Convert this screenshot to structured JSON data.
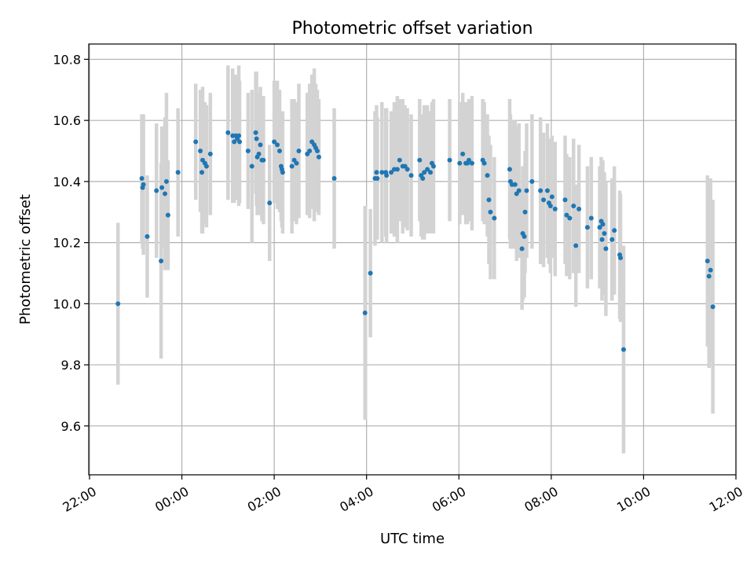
{
  "colors": {
    "point": "#1f77b4",
    "errorbar": "#d3d3d3",
    "grid": "#b0b0b0",
    "axis": "#000000"
  },
  "chart_data": {
    "type": "scatter",
    "title": "Photometric offset variation",
    "xlabel": "UTC time",
    "ylabel": "Photometric offset",
    "grid": true,
    "legend": "none",
    "xlim": [
      -121,
      720
    ],
    "ylim": [
      9.44,
      10.85
    ],
    "xticks": [
      {
        "value": -120,
        "label": "22:00"
      },
      {
        "value": 0,
        "label": "00:00"
      },
      {
        "value": 120,
        "label": "02:00"
      },
      {
        "value": 240,
        "label": "04:00"
      },
      {
        "value": 360,
        "label": "06:00"
      },
      {
        "value": 480,
        "label": "08:00"
      },
      {
        "value": 600,
        "label": "10:00"
      },
      {
        "value": 720,
        "label": "12:00"
      }
    ],
    "yticks": [
      {
        "value": 9.6,
        "label": "9.6"
      },
      {
        "value": 9.8,
        "label": "9.8"
      },
      {
        "value": 10.0,
        "label": "10.0"
      },
      {
        "value": 10.2,
        "label": "10.2"
      },
      {
        "value": 10.4,
        "label": "10.4"
      },
      {
        "value": 10.6,
        "label": "10.6"
      },
      {
        "value": 10.8,
        "label": "10.8"
      }
    ],
    "points": [
      {
        "x": -83,
        "y": 10.0,
        "err": 0.265
      },
      {
        "x": -52,
        "y": 10.41,
        "err": 0.21
      },
      {
        "x": -51,
        "y": 10.38,
        "err": 0.2
      },
      {
        "x": -50,
        "y": 10.39,
        "err": 0.23
      },
      {
        "x": -45,
        "y": 10.22,
        "err": 0.2
      },
      {
        "x": -33,
        "y": 10.37,
        "err": 0.22
      },
      {
        "x": -27,
        "y": 10.14,
        "err": 0.32
      },
      {
        "x": -26,
        "y": 10.38,
        "err": 0.2
      },
      {
        "x": -22,
        "y": 10.36,
        "err": 0.25
      },
      {
        "x": -20,
        "y": 10.4,
        "err": 0.29
      },
      {
        "x": -18,
        "y": 10.29,
        "err": 0.18
      },
      {
        "x": -5,
        "y": 10.43,
        "err": 0.21
      },
      {
        "x": 18,
        "y": 10.53,
        "err": 0.19
      },
      {
        "x": 24,
        "y": 10.5,
        "err": 0.2
      },
      {
        "x": 26,
        "y": 10.43,
        "err": 0.2
      },
      {
        "x": 27,
        "y": 10.47,
        "err": 0.24
      },
      {
        "x": 30,
        "y": 10.46,
        "err": 0.2
      },
      {
        "x": 32,
        "y": 10.45,
        "err": 0.2
      },
      {
        "x": 37,
        "y": 10.49,
        "err": 0.2
      },
      {
        "x": 60,
        "y": 10.56,
        "err": 0.22
      },
      {
        "x": 66,
        "y": 10.55,
        "err": 0.22
      },
      {
        "x": 68,
        "y": 10.53,
        "err": 0.2
      },
      {
        "x": 70,
        "y": 10.55,
        "err": 0.2
      },
      {
        "x": 72,
        "y": 10.54,
        "err": 0.2
      },
      {
        "x": 74,
        "y": 10.55,
        "err": 0.23
      },
      {
        "x": 75,
        "y": 10.53,
        "err": 0.2
      },
      {
        "x": 86,
        "y": 10.5,
        "err": 0.19
      },
      {
        "x": 91,
        "y": 10.45,
        "err": 0.25
      },
      {
        "x": 96,
        "y": 10.56,
        "err": 0.2
      },
      {
        "x": 97,
        "y": 10.54,
        "err": 0.22
      },
      {
        "x": 98,
        "y": 10.48,
        "err": 0.19
      },
      {
        "x": 100,
        "y": 10.49,
        "err": 0.2
      },
      {
        "x": 102,
        "y": 10.52,
        "err": 0.19
      },
      {
        "x": 104,
        "y": 10.47,
        "err": 0.2
      },
      {
        "x": 106,
        "y": 10.47,
        "err": 0.21
      },
      {
        "x": 114,
        "y": 10.33,
        "err": 0.19
      },
      {
        "x": 120,
        "y": 10.53,
        "err": 0.2
      },
      {
        "x": 124,
        "y": 10.52,
        "err": 0.21
      },
      {
        "x": 127,
        "y": 10.5,
        "err": 0.2
      },
      {
        "x": 129,
        "y": 10.45,
        "err": 0.18
      },
      {
        "x": 130,
        "y": 10.44,
        "err": 0.19
      },
      {
        "x": 131,
        "y": 10.43,
        "err": 0.2
      },
      {
        "x": 143,
        "y": 10.45,
        "err": 0.22
      },
      {
        "x": 146,
        "y": 10.47,
        "err": 0.2
      },
      {
        "x": 149,
        "y": 10.46,
        "err": 0.2
      },
      {
        "x": 152,
        "y": 10.5,
        "err": 0.22
      },
      {
        "x": 163,
        "y": 10.49,
        "err": 0.2
      },
      {
        "x": 166,
        "y": 10.5,
        "err": 0.22
      },
      {
        "x": 169,
        "y": 10.53,
        "err": 0.22
      },
      {
        "x": 172,
        "y": 10.52,
        "err": 0.25
      },
      {
        "x": 174,
        "y": 10.51,
        "err": 0.21
      },
      {
        "x": 176,
        "y": 10.5,
        "err": 0.2
      },
      {
        "x": 178,
        "y": 10.48,
        "err": 0.19
      },
      {
        "x": 198,
        "y": 10.41,
        "err": 0.23
      },
      {
        "x": 238,
        "y": 9.97,
        "err": 0.35
      },
      {
        "x": 245,
        "y": 10.1,
        "err": 0.21
      },
      {
        "x": 251,
        "y": 10.41,
        "err": 0.22
      },
      {
        "x": 253,
        "y": 10.43,
        "err": 0.22
      },
      {
        "x": 254,
        "y": 10.41,
        "err": 0.2
      },
      {
        "x": 260,
        "y": 10.43,
        "err": 0.23
      },
      {
        "x": 265,
        "y": 10.43,
        "err": 0.21
      },
      {
        "x": 266,
        "y": 10.42,
        "err": 0.22
      },
      {
        "x": 272,
        "y": 10.43,
        "err": 0.2
      },
      {
        "x": 276,
        "y": 10.44,
        "err": 0.22
      },
      {
        "x": 280,
        "y": 10.44,
        "err": 0.24
      },
      {
        "x": 283,
        "y": 10.47,
        "err": 0.2
      },
      {
        "x": 287,
        "y": 10.45,
        "err": 0.22
      },
      {
        "x": 290,
        "y": 10.45,
        "err": 0.2
      },
      {
        "x": 293,
        "y": 10.44,
        "err": 0.2
      },
      {
        "x": 298,
        "y": 10.42,
        "err": 0.2
      },
      {
        "x": 309,
        "y": 10.47,
        "err": 0.2
      },
      {
        "x": 311,
        "y": 10.42,
        "err": 0.2
      },
      {
        "x": 313,
        "y": 10.41,
        "err": 0.2
      },
      {
        "x": 315,
        "y": 10.43,
        "err": 0.22
      },
      {
        "x": 319,
        "y": 10.44,
        "err": 0.21
      },
      {
        "x": 323,
        "y": 10.43,
        "err": 0.2
      },
      {
        "x": 325,
        "y": 10.46,
        "err": 0.2
      },
      {
        "x": 327,
        "y": 10.45,
        "err": 0.22
      },
      {
        "x": 348,
        "y": 10.47,
        "err": 0.2
      },
      {
        "x": 361,
        "y": 10.46,
        "err": 0.2
      },
      {
        "x": 365,
        "y": 10.49,
        "err": 0.2
      },
      {
        "x": 369,
        "y": 10.46,
        "err": 0.2
      },
      {
        "x": 371,
        "y": 10.46,
        "err": 0.2
      },
      {
        "x": 373,
        "y": 10.47,
        "err": 0.2
      },
      {
        "x": 377,
        "y": 10.46,
        "err": 0.22
      },
      {
        "x": 391,
        "y": 10.47,
        "err": 0.2
      },
      {
        "x": 393,
        "y": 10.46,
        "err": 0.2
      },
      {
        "x": 397,
        "y": 10.42,
        "err": 0.2
      },
      {
        "x": 399,
        "y": 10.34,
        "err": 0.21
      },
      {
        "x": 401,
        "y": 10.3,
        "err": 0.22
      },
      {
        "x": 406,
        "y": 10.28,
        "err": 0.2
      },
      {
        "x": 426,
        "y": 10.44,
        "err": 0.23
      },
      {
        "x": 427,
        "y": 10.4,
        "err": 0.22
      },
      {
        "x": 429,
        "y": 10.39,
        "err": 0.21
      },
      {
        "x": 433,
        "y": 10.39,
        "err": 0.21
      },
      {
        "x": 435,
        "y": 10.36,
        "err": 0.22
      },
      {
        "x": 438,
        "y": 10.37,
        "err": 0.22
      },
      {
        "x": 442,
        "y": 10.18,
        "err": 0.2
      },
      {
        "x": 443,
        "y": 10.23,
        "err": 0.22
      },
      {
        "x": 445,
        "y": 10.22,
        "err": 0.2
      },
      {
        "x": 446,
        "y": 10.3,
        "err": 0.2
      },
      {
        "x": 448,
        "y": 10.37,
        "err": 0.22
      },
      {
        "x": 455,
        "y": 10.4,
        "err": 0.22
      },
      {
        "x": 466,
        "y": 10.37,
        "err": 0.24
      },
      {
        "x": 470,
        "y": 10.34,
        "err": 0.22
      },
      {
        "x": 475,
        "y": 10.37,
        "err": 0.22
      },
      {
        "x": 477,
        "y": 10.33,
        "err": 0.2
      },
      {
        "x": 479,
        "y": 10.32,
        "err": 0.22
      },
      {
        "x": 481,
        "y": 10.35,
        "err": 0.2
      },
      {
        "x": 485,
        "y": 10.31,
        "err": 0.22
      },
      {
        "x": 498,
        "y": 10.34,
        "err": 0.21
      },
      {
        "x": 500,
        "y": 10.29,
        "err": 0.2
      },
      {
        "x": 504,
        "y": 10.28,
        "err": 0.2
      },
      {
        "x": 509,
        "y": 10.32,
        "err": 0.22
      },
      {
        "x": 512,
        "y": 10.19,
        "err": 0.2
      },
      {
        "x": 516,
        "y": 10.31,
        "err": 0.21
      },
      {
        "x": 527,
        "y": 10.25,
        "err": 0.2
      },
      {
        "x": 532,
        "y": 10.28,
        "err": 0.2
      },
      {
        "x": 543,
        "y": 10.25,
        "err": 0.2
      },
      {
        "x": 545,
        "y": 10.27,
        "err": 0.21
      },
      {
        "x": 546,
        "y": 10.21,
        "err": 0.2
      },
      {
        "x": 547,
        "y": 10.26,
        "err": 0.21
      },
      {
        "x": 549,
        "y": 10.23,
        "err": 0.2
      },
      {
        "x": 551,
        "y": 10.18,
        "err": 0.22
      },
      {
        "x": 559,
        "y": 10.21,
        "err": 0.2
      },
      {
        "x": 562,
        "y": 10.24,
        "err": 0.21
      },
      {
        "x": 569,
        "y": 10.16,
        "err": 0.21
      },
      {
        "x": 570,
        "y": 10.15,
        "err": 0.21
      },
      {
        "x": 574,
        "y": 9.85,
        "err": 0.34
      },
      {
        "x": 683,
        "y": 10.14,
        "err": 0.28
      },
      {
        "x": 685,
        "y": 10.09,
        "err": 0.3
      },
      {
        "x": 687,
        "y": 10.11,
        "err": 0.3
      },
      {
        "x": 690,
        "y": 9.99,
        "err": 0.35
      }
    ]
  }
}
